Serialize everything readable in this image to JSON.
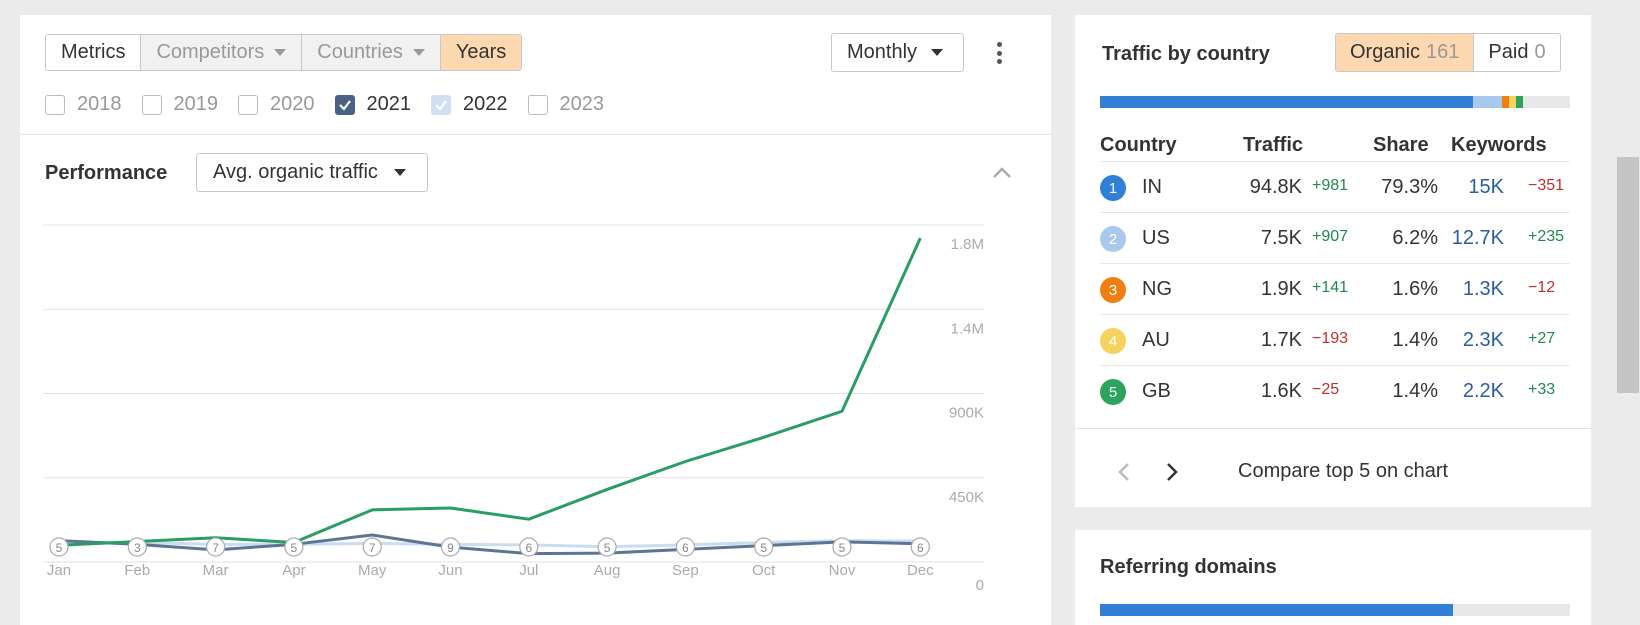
{
  "filters": {
    "tabs": [
      {
        "label": "Metrics"
      },
      {
        "label": "Competitors"
      },
      {
        "label": "Countries"
      },
      {
        "label": "Years"
      }
    ],
    "interval": "Monthly",
    "years": [
      {
        "label": "2018",
        "checked": false
      },
      {
        "label": "2019",
        "checked": false
      },
      {
        "label": "2020",
        "checked": false
      },
      {
        "label": "2021",
        "checked": true,
        "color": "#4a6282"
      },
      {
        "label": "2022",
        "checked": true,
        "color": "#cfe0f3"
      },
      {
        "label": "2023",
        "checked": false
      }
    ]
  },
  "performance": {
    "title": "Performance",
    "metric": "Avg. organic traffic"
  },
  "chart_data": {
    "type": "line",
    "categories": [
      "Jan",
      "Feb",
      "Mar",
      "Apr",
      "May",
      "Jun",
      "Jul",
      "Aug",
      "Sep",
      "Oct",
      "Nov",
      "Dec"
    ],
    "y_ticks": [
      "1.8M",
      "1.4M",
      "900K",
      "450K",
      "0"
    ],
    "ylim": [
      0,
      1800000
    ],
    "annotations": [
      5,
      3,
      7,
      5,
      7,
      9,
      6,
      5,
      6,
      5,
      5,
      6
    ],
    "grid": true,
    "series": [
      {
        "color": "#2a9d64",
        "values": [
          90000,
          110000,
          130000,
          105000,
          280000,
          290000,
          230000,
          390000,
          540000,
          670000,
          810000,
          1740000
        ]
      },
      {
        "color": "#5b7594",
        "values": [
          115000,
          95000,
          65000,
          95000,
          145000,
          80000,
          45000,
          48000,
          68000,
          88000,
          108000,
          98000
        ]
      },
      {
        "color": "#c9dcf0",
        "values": [
          105000,
          105000,
          95000,
          95000,
          100000,
          95000,
          92000,
          82000,
          92000,
          105000,
          115000,
          112000
        ]
      }
    ]
  },
  "traffic_by_country": {
    "title": "Traffic by country",
    "organic_label": "Organic",
    "organic_count": "161",
    "paid_label": "Paid",
    "paid_count": "0",
    "share_bar": [
      {
        "share": 79.3,
        "color": "#2f80d6"
      },
      {
        "share": 6.2,
        "color": "#a9c9ec"
      },
      {
        "share": 1.6,
        "color": "#f07f12"
      },
      {
        "share": 1.4,
        "color": "#f4d35e"
      },
      {
        "share": 1.4,
        "color": "#2aa55b"
      }
    ],
    "headers": {
      "country": "Country",
      "traffic": "Traffic",
      "share": "Share",
      "keywords": "Keywords"
    },
    "rows": [
      {
        "rank": "1",
        "rank_color": "#2f80d6",
        "code": "IN",
        "traffic": "94.8K",
        "traffic_delta": "+981",
        "share": "79.3%",
        "keywords": "15K",
        "keywords_delta": "−351"
      },
      {
        "rank": "2",
        "rank_color": "#a9c9ec",
        "code": "US",
        "traffic": "7.5K",
        "traffic_delta": "+907",
        "share": "6.2%",
        "keywords": "12.7K",
        "keywords_delta": "+235"
      },
      {
        "rank": "3",
        "rank_color": "#f07f12",
        "code": "NG",
        "traffic": "1.9K",
        "traffic_delta": "+141",
        "share": "1.6%",
        "keywords": "1.3K",
        "keywords_delta": "−12"
      },
      {
        "rank": "4",
        "rank_color": "#f4d35e",
        "code": "AU",
        "traffic": "1.7K",
        "traffic_delta": "−193",
        "share": "1.4%",
        "keywords": "2.3K",
        "keywords_delta": "+27"
      },
      {
        "rank": "5",
        "rank_color": "#2aa55b",
        "code": "GB",
        "traffic": "1.6K",
        "traffic_delta": "−25",
        "share": "1.4%",
        "keywords": "2.2K",
        "keywords_delta": "+33"
      }
    ],
    "compare_label": "Compare top 5 on chart"
  },
  "referring_domains": {
    "title": "Referring domains",
    "bar_fill": 0.75
  }
}
